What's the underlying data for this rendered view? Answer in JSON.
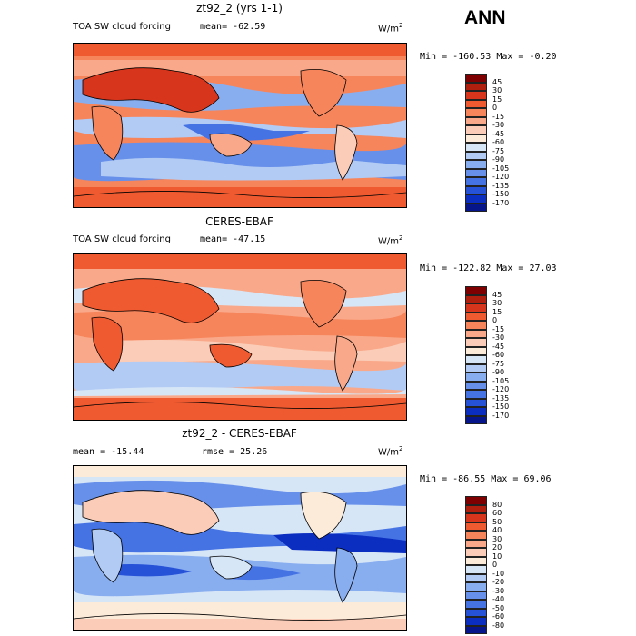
{
  "season": "ANN",
  "panels": [
    {
      "title": "zt92_2 (yrs 1-1)",
      "variable": "TOA SW cloud forcing",
      "mean_label": "mean=",
      "mean_value": "-62.59",
      "units": "W/m",
      "units_exp": "2",
      "min_label": "Min =",
      "min_value": "-160.53",
      "max_label": "Max =",
      "max_value": "-0.20",
      "levels": [
        "45",
        "30",
        "15",
        "0",
        "-15",
        "-30",
        "-45",
        "-60",
        "-75",
        "-90",
        "-105",
        "-120",
        "-135",
        "-150",
        "-170"
      ],
      "colors": [
        "#7f0000",
        "#b01e0e",
        "#d8361c",
        "#f05a30",
        "#f7855c",
        "#f9a98a",
        "#fbcdb8",
        "#fdebd9",
        "#d7e6f7",
        "#b2cbf4",
        "#89aef0",
        "#6790ea",
        "#4673e4",
        "#2652d8",
        "#0b2dc0",
        "#06168a"
      ]
    },
    {
      "title": "CERES-EBAF",
      "variable": "TOA SW cloud forcing",
      "mean_label": "mean=",
      "mean_value": "-47.15",
      "units": "W/m",
      "units_exp": "2",
      "min_label": "Min =",
      "min_value": "-122.82",
      "max_label": "Max =",
      "max_value": "27.03",
      "levels": [
        "45",
        "30",
        "15",
        "0",
        "-15",
        "-30",
        "-45",
        "-60",
        "-75",
        "-90",
        "-105",
        "-120",
        "-135",
        "-150",
        "-170"
      ],
      "colors": [
        "#7f0000",
        "#b01e0e",
        "#d8361c",
        "#f05a30",
        "#f7855c",
        "#f9a98a",
        "#fbcdb8",
        "#fdebd9",
        "#d7e6f7",
        "#b2cbf4",
        "#89aef0",
        "#6790ea",
        "#4673e4",
        "#2652d8",
        "#0b2dc0",
        "#06168a"
      ]
    },
    {
      "title": "zt92_2 - CERES-EBAF",
      "variable": "",
      "mean_label": "mean =",
      "mean_value": "-15.44",
      "rmse_label": "rmse =",
      "rmse_value": "25.26",
      "units": "W/m",
      "units_exp": "2",
      "min_label": "Min =",
      "min_value": "-86.55",
      "max_label": "Max =",
      "max_value": "69.06",
      "levels": [
        "80",
        "60",
        "50",
        "40",
        "30",
        "20",
        "10",
        "0",
        "-10",
        "-20",
        "-30",
        "-40",
        "-50",
        "-60",
        "-80"
      ],
      "colors": [
        "#7f0000",
        "#b01e0e",
        "#d8361c",
        "#f05a30",
        "#f7855c",
        "#f9a98a",
        "#fbcdb8",
        "#fdebd9",
        "#d7e6f7",
        "#b2cbf4",
        "#89aef0",
        "#6790ea",
        "#4673e4",
        "#2652d8",
        "#0b2dc0",
        "#06168a"
      ]
    }
  ],
  "chart_data": [
    {
      "type": "heatmap",
      "title": "zt92_2 (yrs 1-1)",
      "subtitle": "TOA SW cloud forcing",
      "units": "W/m2",
      "mean": -62.59,
      "min": -160.53,
      "max": -0.2,
      "contour_levels": [
        45,
        30,
        15,
        0,
        -15,
        -30,
        -45,
        -60,
        -75,
        -90,
        -105,
        -120,
        -135,
        -150,
        -170
      ]
    },
    {
      "type": "heatmap",
      "title": "CERES-EBAF",
      "subtitle": "TOA SW cloud forcing",
      "units": "W/m2",
      "mean": -47.15,
      "min": -122.82,
      "max": 27.03,
      "contour_levels": [
        45,
        30,
        15,
        0,
        -15,
        -30,
        -45,
        -60,
        -75,
        -90,
        -105,
        -120,
        -135,
        -150,
        -170
      ]
    },
    {
      "type": "heatmap",
      "title": "zt92_2 - CERES-EBAF",
      "units": "W/m2",
      "mean": -15.44,
      "rmse": 25.26,
      "min": -86.55,
      "max": 69.06,
      "contour_levels": [
        80,
        60,
        50,
        40,
        30,
        20,
        10,
        0,
        -10,
        -20,
        -30,
        -40,
        -50,
        -60,
        -80
      ]
    }
  ]
}
